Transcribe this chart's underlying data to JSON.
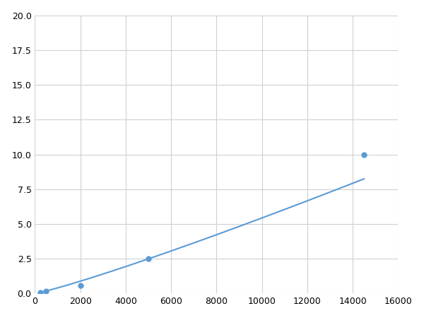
{
  "x": [
    250,
    500,
    2000,
    5000,
    14500
  ],
  "y": [
    0.1,
    0.2,
    0.6,
    2.5,
    10.0
  ],
  "line_color": "#5b9bd5",
  "marker_color": "#5b9bd5",
  "marker_size": 5,
  "xlim": [
    0,
    16000
  ],
  "ylim": [
    0,
    20.0
  ],
  "xticks": [
    0,
    2000,
    4000,
    6000,
    8000,
    10000,
    12000,
    14000,
    16000
  ],
  "yticks": [
    0.0,
    2.5,
    5.0,
    7.5,
    10.0,
    12.5,
    15.0,
    17.5,
    20.0
  ],
  "grid_color": "#d0d0d0",
  "background_color": "#ffffff",
  "figure_bg": "#ffffff"
}
